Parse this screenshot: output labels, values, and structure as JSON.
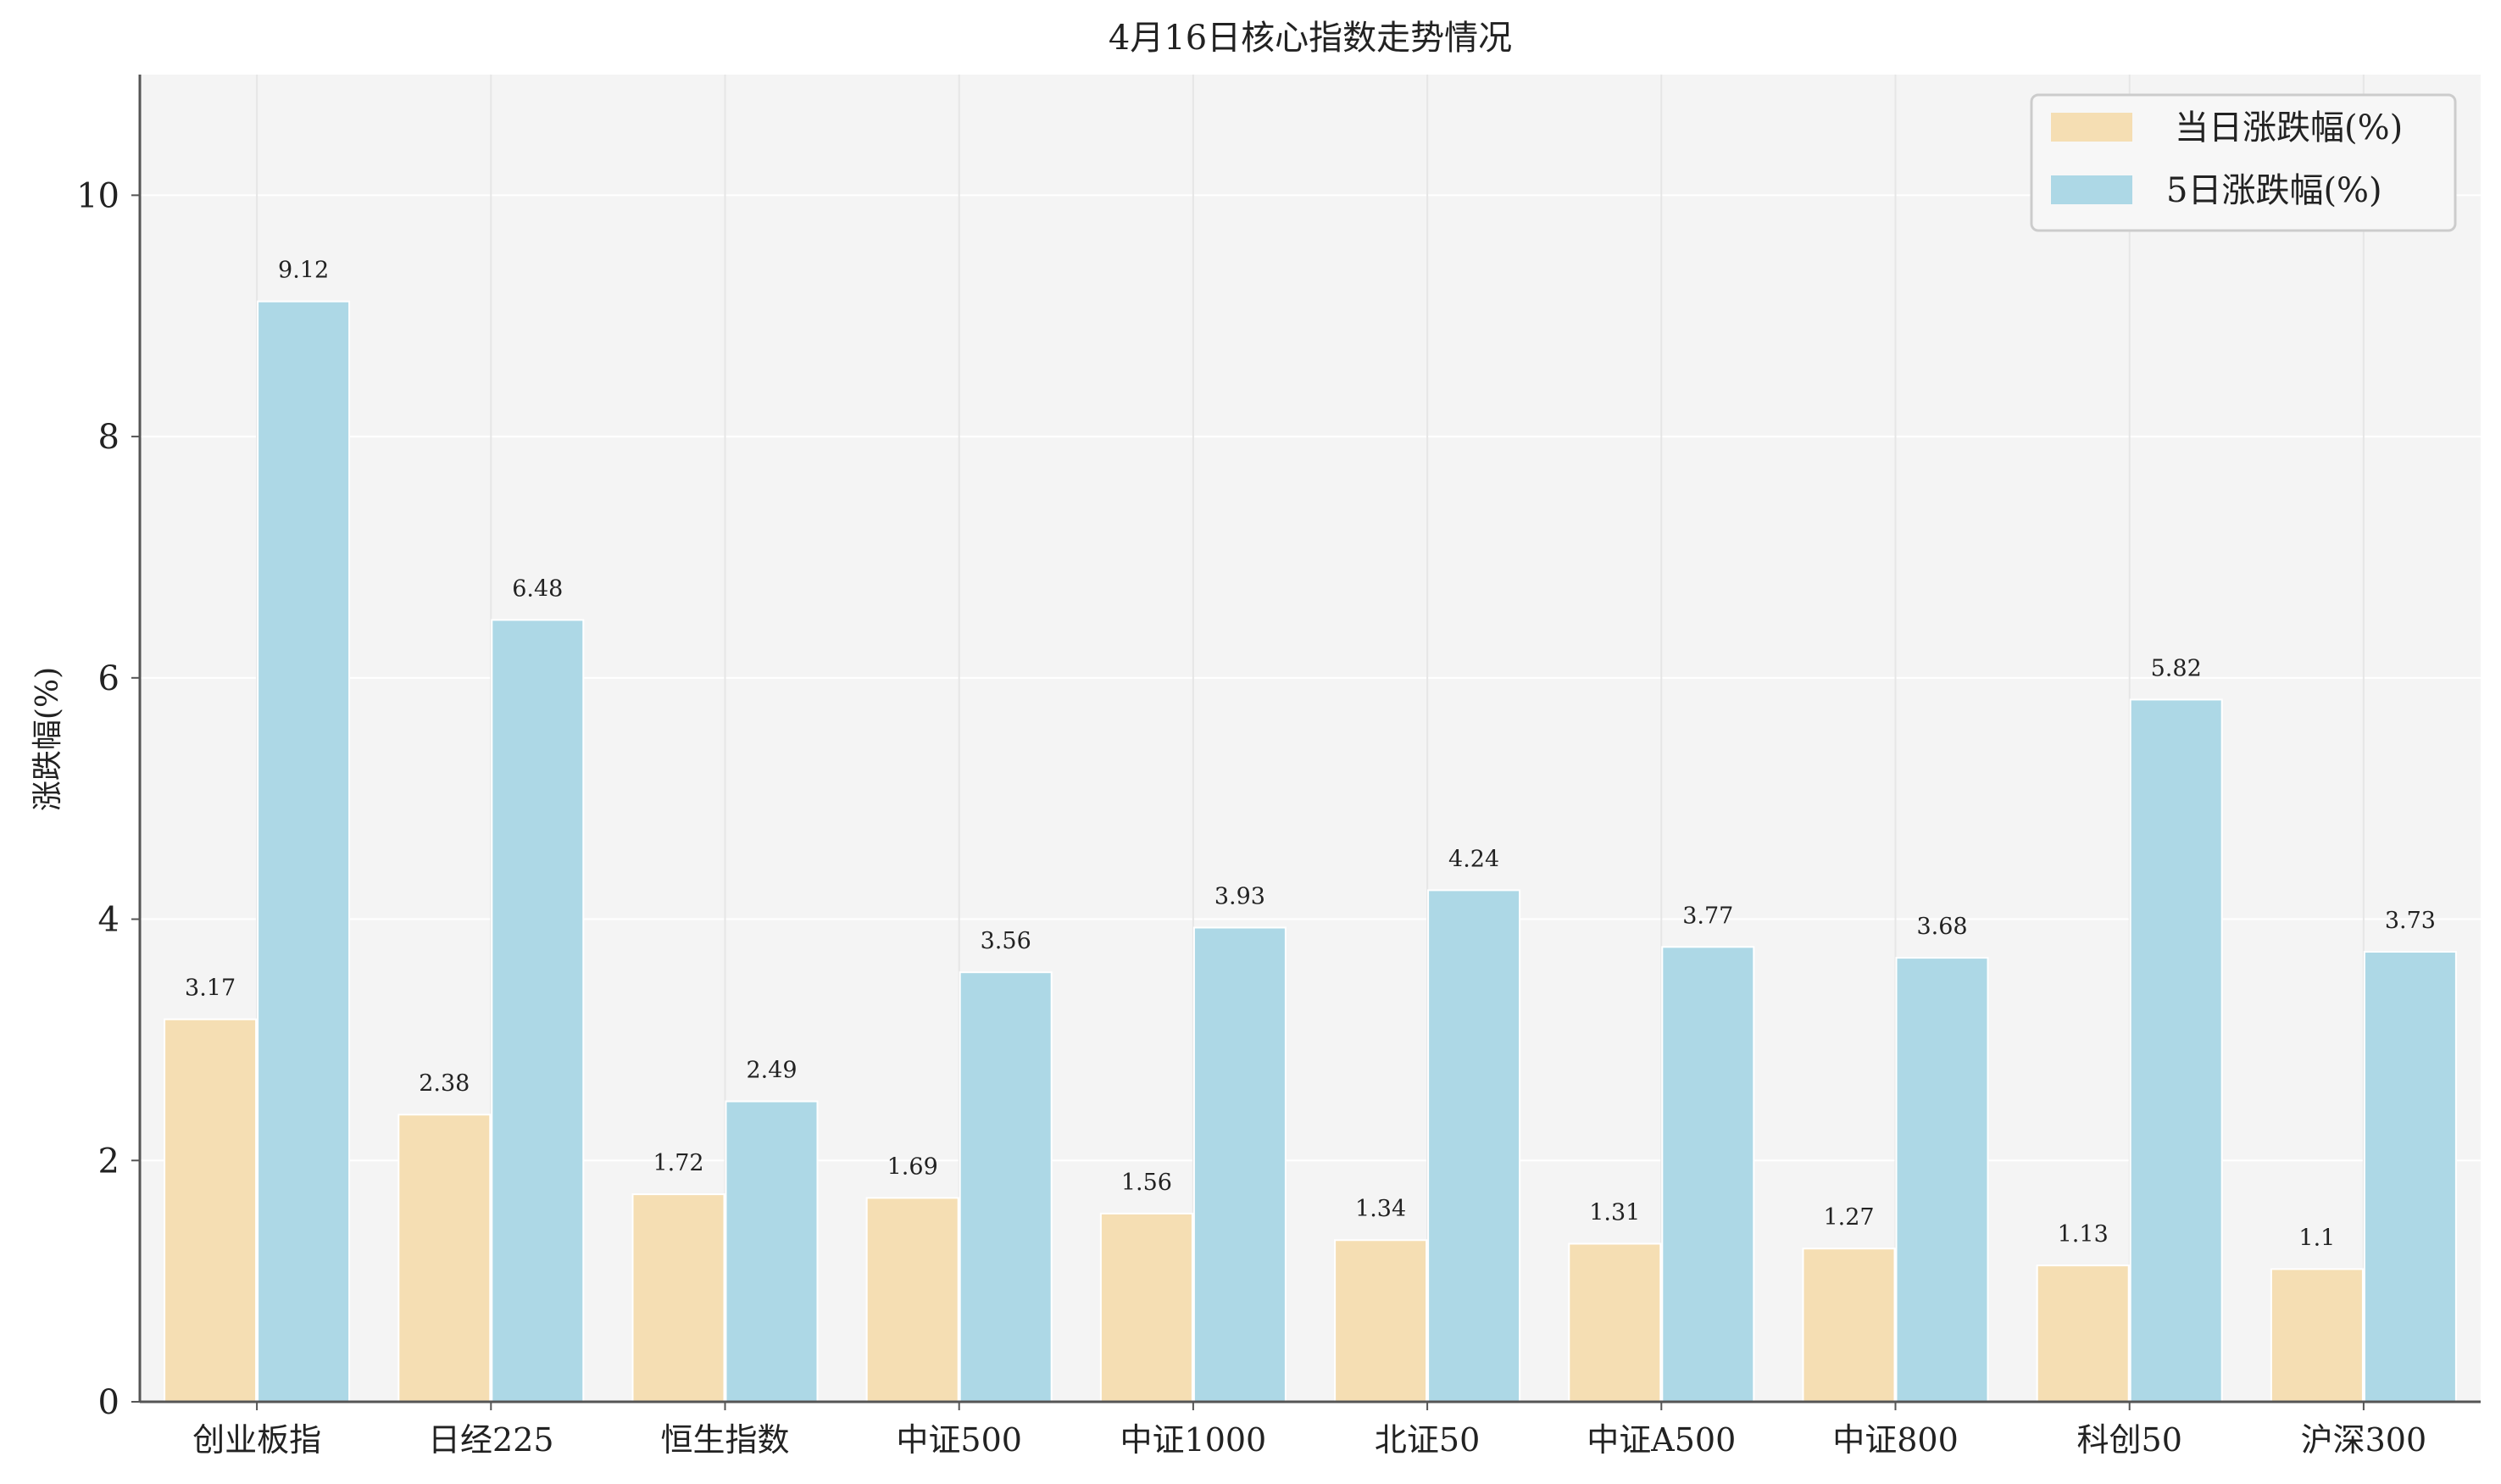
{
  "chart_data": {
    "type": "bar",
    "title": "4月16日核心指数走势情况",
    "xlabel": "",
    "ylabel": "涨跌幅(%)",
    "ylim": [
      0,
      11
    ],
    "yticks": [
      0,
      2,
      4,
      6,
      8,
      10
    ],
    "grid": true,
    "legend_position": "top-right",
    "categories": [
      "创业板指",
      "日经225",
      "恒生指数",
      "中证500",
      "中证1000",
      "北证50",
      "中证A500",
      "中证800",
      "科创50",
      "沪深300"
    ],
    "series": [
      {
        "name": "当日涨跌幅(%)",
        "color": "#f5deb3",
        "values": [
          3.17,
          2.38,
          1.72,
          1.69,
          1.56,
          1.34,
          1.31,
          1.27,
          1.13,
          1.1
        ],
        "labels": [
          "3.17",
          "2.38",
          "1.72",
          "1.69",
          "1.56",
          "1.34",
          "1.31",
          "1.27",
          "1.13",
          "1.1"
        ]
      },
      {
        "name": "5日涨跌幅(%)",
        "color": "#add8e6",
        "values": [
          9.12,
          6.48,
          2.49,
          3.56,
          3.93,
          4.24,
          3.77,
          3.68,
          5.82,
          3.73
        ],
        "labels": [
          "9.12",
          "6.48",
          "2.49",
          "3.56",
          "3.93",
          "4.24",
          "3.77",
          "3.68",
          "5.82",
          "3.73"
        ]
      }
    ]
  }
}
